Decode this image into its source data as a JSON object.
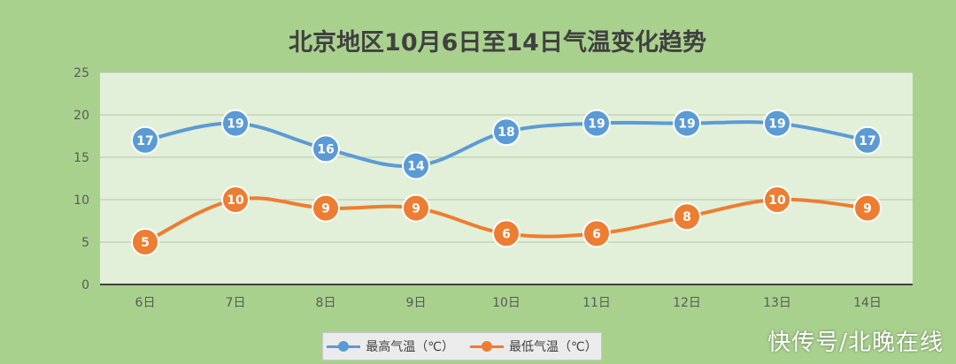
{
  "chart_data": {
    "type": "line",
    "title": "北京地区10月6日至14日气温变化趋势",
    "categories": [
      "6日",
      "7日",
      "8日",
      "9日",
      "10日",
      "11日",
      "12日",
      "13日",
      "14日"
    ],
    "series": [
      {
        "name": "最高气温（℃）",
        "values": [
          17,
          19,
          16,
          14,
          18,
          19,
          19,
          19,
          17
        ],
        "color": "#5b9bd5"
      },
      {
        "name": "最低气温（℃）",
        "values": [
          5,
          10,
          9,
          9,
          6,
          6,
          8,
          10,
          9
        ],
        "color": "#ed7d31"
      }
    ],
    "ylim": [
      0,
      25
    ],
    "yticks": [
      0,
      5,
      10,
      15,
      20,
      25
    ],
    "grid": true,
    "smooth": true,
    "data_labels": true,
    "legend": "bottom"
  },
  "colors": {
    "background": "#a9d18e",
    "plot_area": "#e2efd9"
  },
  "watermark": "快传号/北晚在线"
}
